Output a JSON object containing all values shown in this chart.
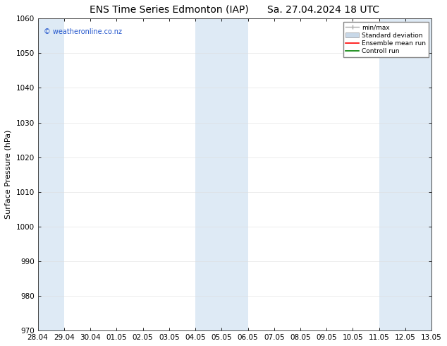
{
  "title_left": "ENS Time Series Edmonton (IAP)",
  "title_right": "Sa. 27.04.2024 18 UTC",
  "ylabel": "Surface Pressure (hPa)",
  "ylim": [
    970,
    1060
  ],
  "yticks": [
    970,
    980,
    990,
    1000,
    1010,
    1020,
    1030,
    1040,
    1050,
    1060
  ],
  "xtick_labels": [
    "28.04",
    "29.04",
    "30.04",
    "01.05",
    "02.05",
    "03.05",
    "04.05",
    "05.05",
    "06.05",
    "07.05",
    "08.05",
    "09.05",
    "10.05",
    "11.05",
    "12.05",
    "13.05"
  ],
  "xlim": [
    0,
    15
  ],
  "band_color": "#deeaf5",
  "background_color": "#ffffff",
  "watermark": "© weatheronline.co.nz",
  "watermark_color": "#2255cc",
  "legend_items": [
    "min/max",
    "Standard deviation",
    "Ensemble mean run",
    "Controll run"
  ],
  "legend_colors_handle": [
    "#aaaaaa",
    "#c8d8e8",
    "#ff0000",
    "#008000"
  ],
  "title_fontsize": 10,
  "axis_fontsize": 8,
  "tick_fontsize": 7.5
}
